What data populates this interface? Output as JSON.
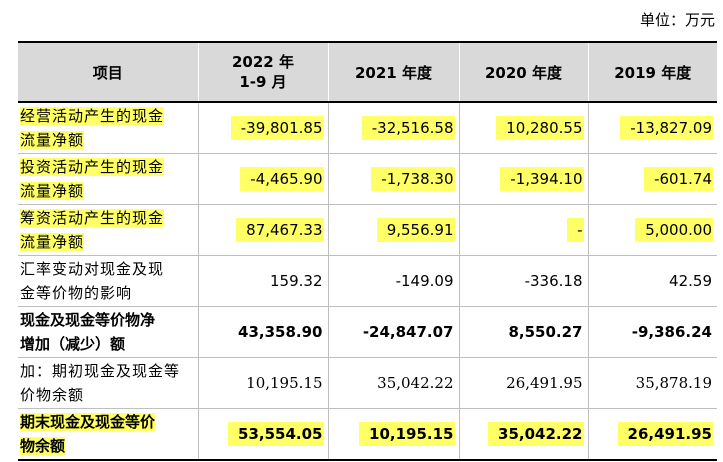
{
  "unit_label": "单位：万元",
  "headers": [
    "项目",
    "2022 年\n1-9 月",
    "2021 年度",
    "2020 年度",
    "2019 年度"
  ],
  "rows": [
    {
      "label_lines": [
        "经营活动产生的现金",
        "流量净额"
      ],
      "values": [
        "-39,801.85",
        "-32,516.58",
        "10,280.55",
        "-13,827.09"
      ]
    },
    {
      "label_lines": [
        "投资活动产生的现金",
        "流量净额"
      ],
      "values": [
        "-4,465.90",
        "-1,738.30",
        "-1,394.10",
        "-601.74"
      ]
    },
    {
      "label_lines": [
        "筹资活动产生的现金",
        "流量净额"
      ],
      "values": [
        "87,467.33",
        "9,556.91",
        "-",
        "5,000.00"
      ]
    },
    {
      "label_lines": [
        "汇率变动对现金及现",
        "金等价物的影响"
      ],
      "values": [
        "159.32",
        "-149.09",
        "-336.18",
        "42.59"
      ]
    },
    {
      "label_lines": [
        "现金及现金等价物净",
        "增加（减少）额"
      ],
      "values": [
        "43,358.90",
        "-24,847.07",
        "8,550.27",
        "-9,386.24"
      ]
    },
    {
      "label_lines": [
        "加：期初现金及现金等",
        "价物余额"
      ],
      "values": [
        "10,195.15",
        "35,042.22",
        "26,491.95",
        "35,878.19"
      ]
    },
    {
      "label_lines": [
        "期末现金及现金等价",
        "物余额"
      ],
      "values": [
        "53,554.05",
        "10,195.15",
        "35,042.22",
        "26,491.95"
      ]
    }
  ],
  "highlight_color": "#ffff66",
  "header_bg": "#d9d9d9"
}
